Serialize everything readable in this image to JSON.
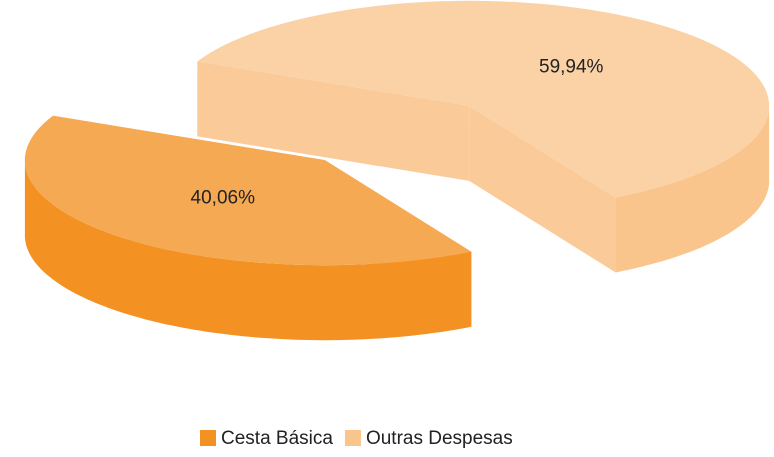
{
  "chart_data": {
    "type": "pie3d",
    "categories": [
      "Cesta Básica",
      "Outras Despesas"
    ],
    "values": [
      40.06,
      59.94
    ],
    "value_labels": [
      "40,06%",
      "59,94%"
    ],
    "colors": [
      "#f39122",
      "#f9c58d"
    ],
    "legend": "bottom"
  }
}
